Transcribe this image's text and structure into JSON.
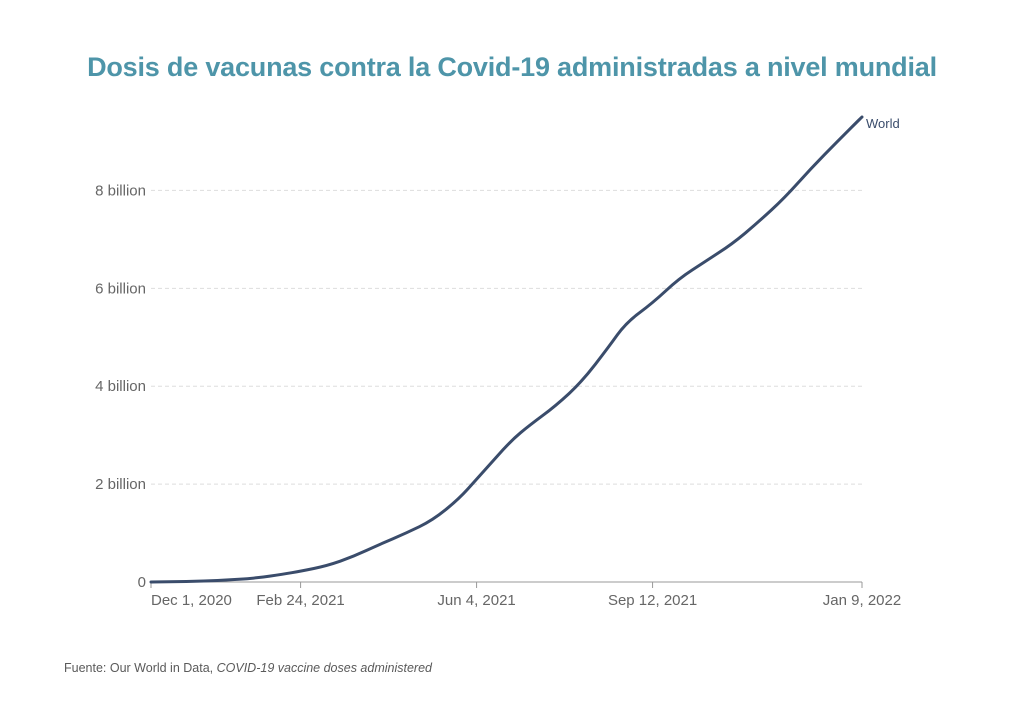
{
  "title": "Dosis de vacunas contra la Covid-19 administradas a nivel mundial",
  "source": {
    "prefix": "Fuente: Our World in Data, ",
    "dataset": "COVID-19 vaccine doses administered"
  },
  "colors": {
    "title": "#4e95a9",
    "line": "#3a4c6b",
    "grid": "#dddddd",
    "axis": "#999999",
    "text": "#666666"
  },
  "chart_data": {
    "type": "line",
    "title": "Dosis de vacunas contra la Covid-19 administradas a nivel mundial",
    "xlabel": "",
    "ylabel": "",
    "x_range": [
      "2020-12-01",
      "2022-01-09"
    ],
    "ylim": [
      0,
      9500000000
    ],
    "grid": "horizontal dashed",
    "y_ticks": [
      {
        "value": 0,
        "label": "0"
      },
      {
        "value": 2000000000,
        "label": "2 billion"
      },
      {
        "value": 4000000000,
        "label": "4 billion"
      },
      {
        "value": 6000000000,
        "label": "6 billion"
      },
      {
        "value": 8000000000,
        "label": "8 billion"
      }
    ],
    "x_ticks": [
      {
        "date": "2020-12-01",
        "label": "Dec 1, 2020"
      },
      {
        "date": "2021-02-24",
        "label": "Feb 24, 2021"
      },
      {
        "date": "2021-06-04",
        "label": "Jun 4, 2021"
      },
      {
        "date": "2021-09-12",
        "label": "Sep 12, 2021"
      },
      {
        "date": "2022-01-09",
        "label": "Jan 9, 2022"
      }
    ],
    "series": [
      {
        "name": "World",
        "points": [
          {
            "x": "2020-12-01",
            "y": 0
          },
          {
            "x": "2020-12-21",
            "y": 10000000
          },
          {
            "x": "2021-01-10",
            "y": 30000000
          },
          {
            "x": "2021-01-30",
            "y": 80000000
          },
          {
            "x": "2021-02-14",
            "y": 160000000
          },
          {
            "x": "2021-02-24",
            "y": 220000000
          },
          {
            "x": "2021-03-11",
            "y": 330000000
          },
          {
            "x": "2021-03-26",
            "y": 520000000
          },
          {
            "x": "2021-04-10",
            "y": 770000000
          },
          {
            "x": "2021-04-25",
            "y": 1000000000
          },
          {
            "x": "2021-05-10",
            "y": 1260000000
          },
          {
            "x": "2021-05-25",
            "y": 1700000000
          },
          {
            "x": "2021-06-04",
            "y": 2100000000
          },
          {
            "x": "2021-06-14",
            "y": 2500000000
          },
          {
            "x": "2021-06-24",
            "y": 2900000000
          },
          {
            "x": "2021-07-04",
            "y": 3200000000
          },
          {
            "x": "2021-07-19",
            "y": 3600000000
          },
          {
            "x": "2021-08-03",
            "y": 4100000000
          },
          {
            "x": "2021-08-18",
            "y": 4800000000
          },
          {
            "x": "2021-08-28",
            "y": 5300000000
          },
          {
            "x": "2021-09-12",
            "y": 5700000000
          },
          {
            "x": "2021-09-27",
            "y": 6200000000
          },
          {
            "x": "2021-10-12",
            "y": 6550000000
          },
          {
            "x": "2021-10-27",
            "y": 6900000000
          },
          {
            "x": "2021-11-11",
            "y": 7350000000
          },
          {
            "x": "2021-11-26",
            "y": 7850000000
          },
          {
            "x": "2021-12-11",
            "y": 8450000000
          },
          {
            "x": "2021-12-26",
            "y": 9000000000
          },
          {
            "x": "2022-01-09",
            "y": 9500000000
          }
        ]
      }
    ]
  }
}
